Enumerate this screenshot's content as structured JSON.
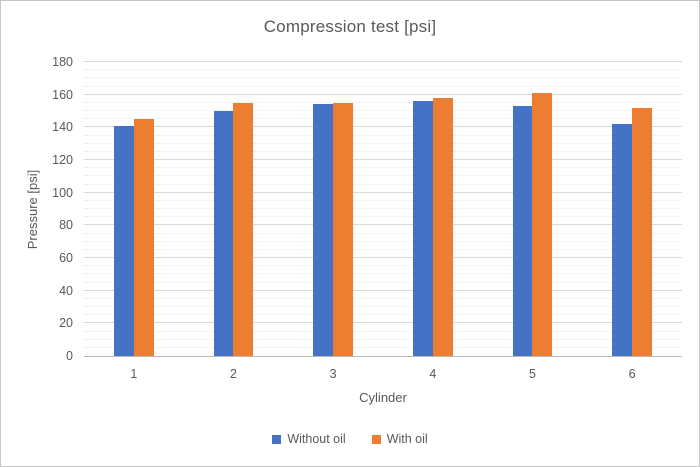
{
  "chart": {
    "title": "Compression test [psi]",
    "x_axis_title": "Cylinder",
    "y_axis_title": "Pressure [psi]"
  },
  "chart_data": {
    "type": "bar",
    "title": "Compression test [psi]",
    "xlabel": "Cylinder",
    "ylabel": "Pressure [psi]",
    "categories": [
      "1",
      "2",
      "3",
      "4",
      "5",
      "6"
    ],
    "series": [
      {
        "name": "Without oil",
        "color": "#4472C4",
        "values": [
          141,
          150,
          154,
          156,
          153,
          142
        ]
      },
      {
        "name": "With oil",
        "color": "#ED7D31",
        "values": [
          145,
          155,
          155,
          158,
          161,
          152
        ]
      }
    ],
    "ylim": [
      0,
      180
    ],
    "y_ticks": [
      0,
      20,
      40,
      60,
      80,
      100,
      120,
      140,
      160,
      180
    ],
    "y_major_step": 20,
    "y_minor_step": 5,
    "grid": true,
    "legend_position": "bottom"
  },
  "colors": {
    "series_blue": "#4472C4",
    "series_orange": "#ED7D31",
    "major_gridline": "#d9d9d9",
    "minor_gridline": "#e8e8e8",
    "axis_line": "#b9b9b9",
    "text": "#595959"
  }
}
